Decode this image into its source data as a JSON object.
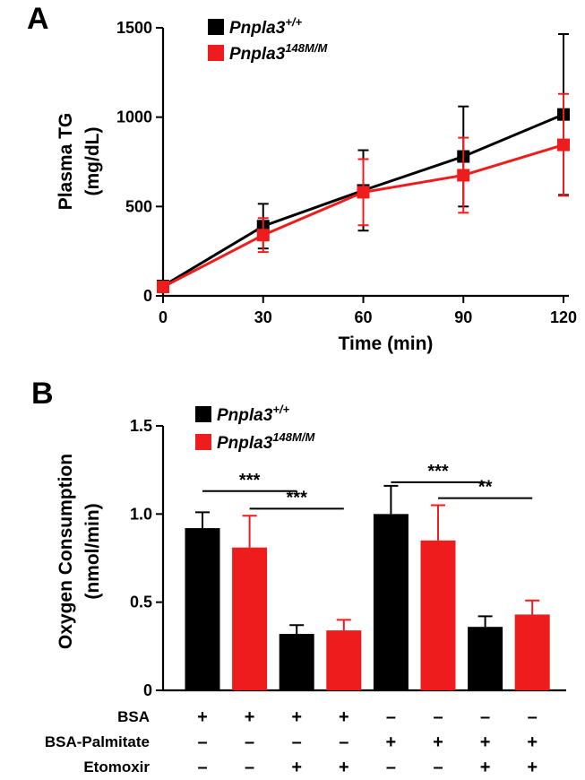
{
  "panel_labels": [
    "A",
    "B"
  ],
  "series_colors": {
    "wt": "#000000",
    "mut": "#ee1c1c"
  },
  "chart_data": [
    {
      "type": "line",
      "panel": "A",
      "ylabel": [
        "Plasma TG",
        "(mg/dL)"
      ],
      "xlabel": "Time (min)",
      "x": [
        0,
        30,
        60,
        90,
        120
      ],
      "xticks": [
        "0",
        "30",
        "60",
        "90",
        "120"
      ],
      "yticks": [
        "0",
        "500",
        "1000",
        "1500"
      ],
      "xlim": [
        0,
        120
      ],
      "ylim": [
        0,
        1500
      ],
      "legend": "top-left",
      "series": [
        {
          "base": "Pnpla3",
          "sup": "+/+",
          "color": "#000000",
          "values": [
            55,
            390,
            590,
            780,
            1015
          ],
          "errors": [
            0,
            125,
            225,
            280,
            450
          ]
        },
        {
          "base": "Pnpla3",
          "sup": "148M/M",
          "color": "#ee1c1c",
          "values": [
            50,
            340,
            580,
            675,
            845
          ],
          "errors": [
            0,
            95,
            185,
            210,
            285
          ]
        }
      ]
    },
    {
      "type": "bar",
      "panel": "B",
      "ylabel": [
        "Oxygen Consumption",
        "(nmol/min)"
      ],
      "yticks": [
        "0",
        "0.5",
        "1.0",
        "1.5"
      ],
      "ylim": [
        0,
        1.5
      ],
      "legend": "top-left",
      "series": [
        {
          "base": "Pnpla3",
          "sup": "+/+",
          "color": "#000000"
        },
        {
          "base": "Pnpla3",
          "sup": "148M/M",
          "color": "#ee1c1c"
        }
      ],
      "bars": [
        {
          "series": 0,
          "value": 0.92,
          "error": 0.09
        },
        {
          "series": 1,
          "value": 0.81,
          "error": 0.18
        },
        {
          "series": 0,
          "value": 0.32,
          "error": 0.05
        },
        {
          "series": 1,
          "value": 0.34,
          "error": 0.06
        },
        {
          "series": 0,
          "value": 1.0,
          "error": 0.16
        },
        {
          "series": 1,
          "value": 0.85,
          "error": 0.2
        },
        {
          "series": 0,
          "value": 0.36,
          "error": 0.06
        },
        {
          "series": 1,
          "value": 0.43,
          "error": 0.08
        }
      ],
      "significance": [
        {
          "from": 0,
          "to": 2,
          "value": 1.13,
          "label": "***"
        },
        {
          "from": 1,
          "to": 3,
          "value": 1.03,
          "label": "***"
        },
        {
          "from": 4,
          "to": 6,
          "value": 1.18,
          "label": "***"
        },
        {
          "from": 5,
          "to": 7,
          "value": 1.09,
          "label": "**"
        }
      ],
      "conditions": [
        {
          "label": "BSA",
          "signs": [
            "+",
            "+",
            "+",
            "+",
            "–",
            "–",
            "–",
            "–"
          ]
        },
        {
          "label": "BSA-Palmitate",
          "signs": [
            "–",
            "–",
            "–",
            "–",
            "+",
            "+",
            "+",
            "+"
          ]
        },
        {
          "label": "Etomoxir",
          "signs": [
            "–",
            "–",
            "+",
            "+",
            "–",
            "–",
            "+",
            "+"
          ]
        }
      ]
    }
  ]
}
